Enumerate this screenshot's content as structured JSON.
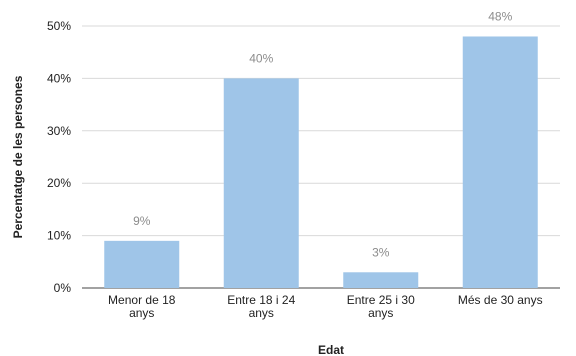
{
  "chart_data": {
    "type": "bar",
    "categories": [
      [
        "Menor de 18",
        "anys"
      ],
      [
        "Entre 18 i 24",
        "anys"
      ],
      [
        "Entre 25 i 30",
        "anys"
      ],
      [
        "Més de 30 anys"
      ]
    ],
    "values": [
      9,
      40,
      3,
      48
    ],
    "data_labels": [
      "9%",
      "40%",
      "3%",
      "48%"
    ],
    "title": "",
    "xlabel": "Edat",
    "ylabel": "Percentatge de les persones",
    "ylim": [
      0,
      50
    ],
    "yticks": [
      0,
      10,
      20,
      30,
      40,
      50
    ],
    "ytick_labels": [
      "0%",
      "10%",
      "20%",
      "30%",
      "40%",
      "50%"
    ],
    "grid": true,
    "legend": "none",
    "colors": {
      "bar": "#9fc5e8",
      "grid": "#d9d9d9",
      "data_label": "#8c8c8c"
    }
  }
}
